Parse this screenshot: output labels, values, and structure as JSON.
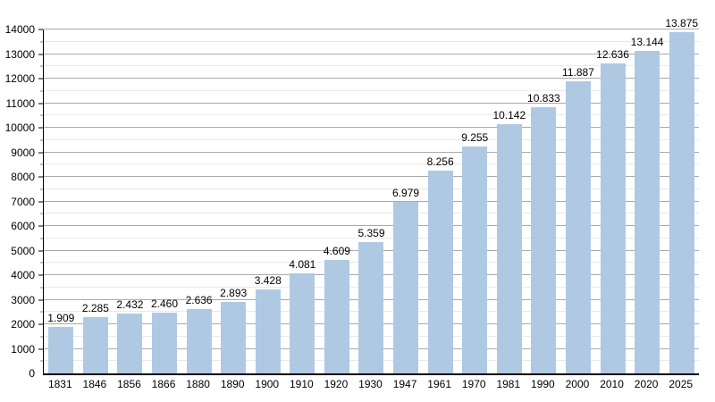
{
  "chart_data": {
    "type": "bar",
    "title": "",
    "xlabel": "",
    "ylabel": "",
    "categories": [
      "1831",
      "1846",
      "1856",
      "1866",
      "1880",
      "1890",
      "1900",
      "1910",
      "1920",
      "1930",
      "1947",
      "1961",
      "1970",
      "1981",
      "1990",
      "2000",
      "2010",
      "2020",
      "2025"
    ],
    "values": [
      1909,
      2285,
      2432,
      2460,
      2636,
      2893,
      3428,
      4081,
      4609,
      5359,
      6979,
      8256,
      9255,
      10142,
      10833,
      11887,
      12636,
      13144,
      13875
    ],
    "value_labels": [
      "1.909",
      "2.285",
      "2.432",
      "2.460",
      "2.636",
      "2.893",
      "3.428",
      "4.081",
      "4.609",
      "5.359",
      "6.979",
      "8.256",
      "9.255",
      "10.142",
      "10.833",
      "11.887",
      "12.636",
      "13.144",
      "13.875"
    ],
    "ylim": [
      0,
      14000
    ],
    "ytick_step": 1000,
    "yminor_step": 500,
    "ytick_labels": [
      "0",
      "1000",
      "2000",
      "3000",
      "4000",
      "5000",
      "6000",
      "7000",
      "8000",
      "9000",
      "10000",
      "11000",
      "12000",
      "13000",
      "14000"
    ],
    "grid": true,
    "legend": false,
    "bar_color": "#afc9e3",
    "major_grid_color": "#aaaaaa",
    "minor_grid_color": "#e9e9e9",
    "axis_color": "#000000"
  }
}
